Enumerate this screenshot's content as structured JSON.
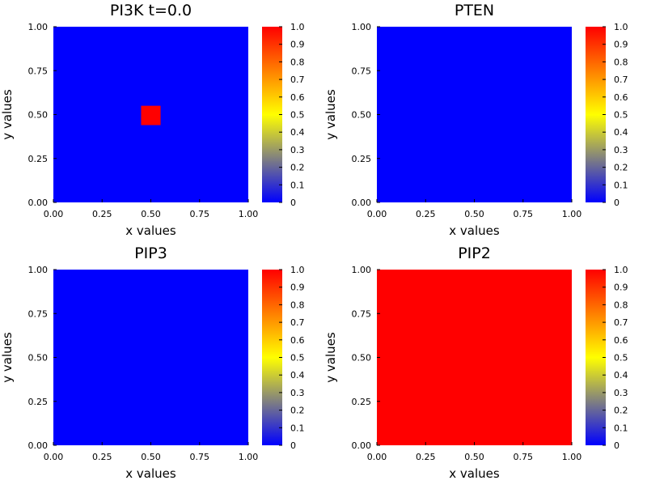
{
  "colors": {
    "low": "#0000ff",
    "mid_gray": "#808080",
    "mid": "#ffff00",
    "high": "#ff0000",
    "axis": "#000000",
    "background": "#ffffff"
  },
  "chart_data": [
    {
      "type": "heatmap",
      "title": "PI3K t=0.0",
      "xlabel": "x values",
      "ylabel": "y values",
      "xlim": [
        0,
        1
      ],
      "ylim": [
        0,
        1
      ],
      "x_ticks": [
        "0.00",
        "0.25",
        "0.50",
        "0.75",
        "1.00"
      ],
      "y_ticks": [
        "0.00",
        "0.25",
        "0.50",
        "0.75",
        "1.00"
      ],
      "colorbar": {
        "range": [
          0,
          1
        ],
        "ticks": [
          "0",
          "0.1",
          "0.2",
          "0.3",
          "0.4",
          "0.5",
          "0.6",
          "0.7",
          "0.8",
          "0.9",
          "1.0"
        ]
      },
      "background_value": 0,
      "regions": [
        {
          "x_range": [
            0.45,
            0.55
          ],
          "y_range": [
            0.44,
            0.55
          ],
          "value": 1.0
        }
      ]
    },
    {
      "type": "heatmap",
      "title": "PTEN",
      "xlabel": "x values",
      "ylabel": "y values",
      "xlim": [
        0,
        1
      ],
      "ylim": [
        0,
        1
      ],
      "x_ticks": [
        "0.00",
        "0.25",
        "0.50",
        "0.75",
        "1.00"
      ],
      "y_ticks": [
        "0.00",
        "0.25",
        "0.50",
        "0.75",
        "1.00"
      ],
      "colorbar": {
        "range": [
          0,
          1
        ],
        "ticks": [
          "0",
          "0.1",
          "0.2",
          "0.3",
          "0.4",
          "0.5",
          "0.6",
          "0.7",
          "0.8",
          "0.9",
          "1.0"
        ]
      },
      "background_value": 0,
      "regions": []
    },
    {
      "type": "heatmap",
      "title": "PIP3",
      "xlabel": "x values",
      "ylabel": "y values",
      "xlim": [
        0,
        1
      ],
      "ylim": [
        0,
        1
      ],
      "x_ticks": [
        "0.00",
        "0.25",
        "0.50",
        "0.75",
        "1.00"
      ],
      "y_ticks": [
        "0.00",
        "0.25",
        "0.50",
        "0.75",
        "1.00"
      ],
      "colorbar": {
        "range": [
          0,
          1
        ],
        "ticks": [
          "0",
          "0.1",
          "0.2",
          "0.3",
          "0.4",
          "0.5",
          "0.6",
          "0.7",
          "0.8",
          "0.9",
          "1.0"
        ]
      },
      "background_value": 0,
      "regions": []
    },
    {
      "type": "heatmap",
      "title": "PIP2",
      "xlabel": "x values",
      "ylabel": "y values",
      "xlim": [
        0,
        1
      ],
      "ylim": [
        0,
        1
      ],
      "x_ticks": [
        "0.00",
        "0.25",
        "0.50",
        "0.75",
        "1.00"
      ],
      "y_ticks": [
        "0.00",
        "0.25",
        "0.50",
        "0.75",
        "1.00"
      ],
      "colorbar": {
        "range": [
          0,
          1
        ],
        "ticks": [
          "0",
          "0.1",
          "0.2",
          "0.3",
          "0.4",
          "0.5",
          "0.6",
          "0.7",
          "0.8",
          "0.9",
          "1.0"
        ]
      },
      "background_value": 1,
      "regions": []
    }
  ]
}
